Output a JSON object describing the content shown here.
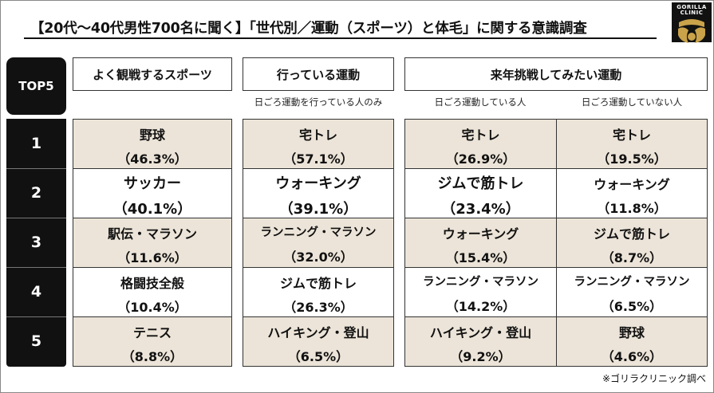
{
  "title": "【20代～40代男性700名に聞く】「世代別／運動（スポーツ）と体毛」に関する意識調査",
  "logo": {
    "text": "GORILLA CLINIC",
    "icon": "gorilla-face-icon"
  },
  "rank_header": "TOP5",
  "ranks": [
    "1",
    "2",
    "3",
    "4",
    "5"
  ],
  "columns": {
    "watch": "よく観戦するスポーツ",
    "doing": "行っている運動",
    "next_year": "来年挑戦してみたい運動"
  },
  "notes": {
    "doing": "日ごろ運動を行っている人のみ",
    "active": "日ごろ運動している人",
    "inactive": "日ごろ運動していない人"
  },
  "rows": [
    {
      "watch": {
        "name": "野球",
        "pct": "（46.3%）"
      },
      "doing": {
        "name": "宅トレ",
        "pct": "（57.1%）"
      },
      "active": {
        "name": "宅トレ",
        "pct": "（26.9%）"
      },
      "inactive": {
        "name": "宅トレ",
        "pct": "（19.5%）"
      }
    },
    {
      "watch": {
        "name": "サッカー",
        "pct": "（40.1%）"
      },
      "doing": {
        "name": "ウォーキング",
        "pct": "（39.1%）"
      },
      "active": {
        "name": "ジムで筋トレ",
        "pct": "（23.4%）"
      },
      "inactive": {
        "name": "ウォーキング",
        "pct": "（11.8%）"
      }
    },
    {
      "watch": {
        "name": "駅伝・マラソン",
        "pct": "（11.6%）"
      },
      "doing": {
        "name": "ランニング・マラソン",
        "pct": "（32.0%）"
      },
      "active": {
        "name": "ウォーキング",
        "pct": "（15.4%）"
      },
      "inactive": {
        "name": "ジムで筋トレ",
        "pct": "（8.7%）"
      }
    },
    {
      "watch": {
        "name": "格闘技全般",
        "pct": "（10.4%）"
      },
      "doing": {
        "name": "ジムで筋トレ",
        "pct": "（26.3%）"
      },
      "active": {
        "name": "ランニング・マラソン",
        "pct": "（14.2%）"
      },
      "inactive": {
        "name": "ランニング・マラソン",
        "pct": "（6.5%）"
      }
    },
    {
      "watch": {
        "name": "テニス",
        "pct": "（8.8%）"
      },
      "doing": {
        "name": "ハイキング・登山",
        "pct": "（6.5%）"
      },
      "active": {
        "name": "ハイキング・登山",
        "pct": "（9.2%）"
      },
      "inactive": {
        "name": "野球",
        "pct": "（4.6%）"
      }
    }
  ],
  "footer": "※ゴリラクリニック調べ",
  "colors": {
    "shade": "#ece4d8",
    "dark": "#111111"
  }
}
